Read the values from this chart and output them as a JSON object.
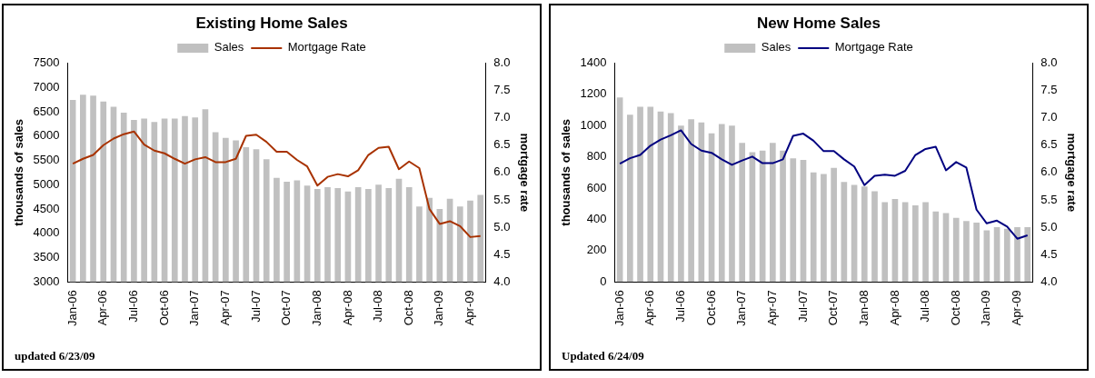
{
  "chart_data": [
    {
      "type": "bar",
      "title": "Existing Home Sales",
      "ylabel": "thousands of sales",
      "y2label": "mortgage rate",
      "categories": [
        "Jan-06",
        null,
        null,
        "Apr-06",
        null,
        null,
        "Jul-06",
        null,
        null,
        "Oct-06",
        null,
        null,
        "Jan-07",
        null,
        null,
        "Apr-07",
        null,
        null,
        "Jul-07",
        null,
        null,
        "Oct-07",
        null,
        null,
        "Jan-08",
        null,
        null,
        "Apr-08",
        null,
        null,
        "Jul-08",
        null,
        null,
        "Oct-08",
        null,
        null,
        "Jan-09",
        null,
        null,
        "Apr-09",
        null
      ],
      "series": [
        {
          "name": "Sales",
          "color": "#c0c0c0",
          "values": [
            6740,
            6850,
            6830,
            6710,
            6600,
            6480,
            6330,
            6360,
            6290,
            6360,
            6360,
            6410,
            6380,
            6550,
            6080,
            5960,
            5910,
            5770,
            5730,
            5520,
            5140,
            5060,
            5090,
            4980,
            4910,
            4950,
            4930,
            4860,
            4950,
            4910,
            5000,
            4930,
            5120,
            4950,
            4550,
            4730,
            4500,
            4710,
            4550,
            4670,
            4790
          ]
        },
        {
          "name": "Mortgage Rate",
          "type": "line",
          "axis": "y2",
          "color": "#a83200",
          "values": [
            6.16,
            6.25,
            6.32,
            6.5,
            6.62,
            6.7,
            6.75,
            6.51,
            6.4,
            6.35,
            6.25,
            6.16,
            6.24,
            6.28,
            6.19,
            6.19,
            6.25,
            6.67,
            6.69,
            6.56,
            6.38,
            6.38,
            6.23,
            6.11,
            5.76,
            5.92,
            5.97,
            5.93,
            6.04,
            6.32,
            6.45,
            6.47,
            6.06,
            6.2,
            6.08,
            5.33,
            5.06,
            5.11,
            5.02,
            4.82,
            4.84
          ]
        }
      ],
      "ylim": [
        3000,
        7500
      ],
      "yticks": [
        3000,
        3500,
        4000,
        4500,
        5000,
        5500,
        6000,
        6500,
        7000,
        7500
      ],
      "y2lim": [
        4,
        8
      ],
      "y2ticks": [
        {
          "value": 4,
          "label": "4.0"
        },
        {
          "value": 4.5,
          "label": "4.5"
        },
        {
          "value": 5,
          "label": "5.0"
        },
        {
          "value": 5.5,
          "label": "5.5"
        },
        {
          "value": 6,
          "label": "6.0"
        },
        {
          "value": 6.5,
          "label": "6.5"
        },
        {
          "value": 7,
          "label": "7.0"
        },
        {
          "value": 7.5,
          "label": "7.5"
        },
        {
          "value": 8,
          "label": "8.0"
        }
      ],
      "legend": "top",
      "marker": "none",
      "grid": false,
      "annotations": [
        "updated 6/23/09"
      ]
    },
    {
      "type": "bar",
      "title": "New Home Sales",
      "ylabel": "thousands of sales",
      "y2label": "mortgage rate",
      "categories": [
        "Jan-06",
        null,
        null,
        "Apr-06",
        null,
        null,
        "Jul-06",
        null,
        null,
        "Oct-06",
        null,
        null,
        "Jan-07",
        null,
        null,
        "Apr-07",
        null,
        null,
        "Jul-07",
        null,
        null,
        "Oct-07",
        null,
        null,
        "Jan-08",
        null,
        null,
        "Apr-08",
        null,
        null,
        "Jul-08",
        null,
        null,
        "Oct-08",
        null,
        null,
        "Jan-09",
        null,
        null,
        "Apr-09",
        null
      ],
      "series": [
        {
          "name": "Sales",
          "color": "#c0c0c0",
          "values": [
            1180,
            1070,
            1120,
            1120,
            1090,
            1080,
            1000,
            1040,
            1020,
            950,
            1010,
            1000,
            890,
            830,
            840,
            890,
            840,
            790,
            780,
            700,
            690,
            730,
            640,
            620,
            610,
            580,
            510,
            530,
            510,
            490,
            510,
            450,
            440,
            410,
            390,
            380,
            330,
            350,
            340,
            350,
            350
          ]
        },
        {
          "name": "Mortgage Rate",
          "type": "line",
          "axis": "y2",
          "color": "#000080",
          "values": [
            6.16,
            6.26,
            6.32,
            6.49,
            6.6,
            6.68,
            6.77,
            6.52,
            6.4,
            6.36,
            6.24,
            6.14,
            6.22,
            6.29,
            6.17,
            6.17,
            6.24,
            6.67,
            6.71,
            6.58,
            6.39,
            6.39,
            6.24,
            6.11,
            5.77,
            5.94,
            5.96,
            5.94,
            6.03,
            6.32,
            6.43,
            6.47,
            6.04,
            6.19,
            6.09,
            5.32,
            5.07,
            5.12,
            5.01,
            4.79,
            4.85
          ]
        }
      ],
      "ylim": [
        0,
        1400
      ],
      "yticks": [
        0,
        200,
        400,
        600,
        800,
        1000,
        1200,
        1400
      ],
      "y2lim": [
        4,
        8
      ],
      "y2ticks": [
        {
          "value": 4,
          "label": "4.0"
        },
        {
          "value": 4.5,
          "label": "4.5"
        },
        {
          "value": 5,
          "label": "5.0"
        },
        {
          "value": 5.5,
          "label": "5.5"
        },
        {
          "value": 6,
          "label": "6.0"
        },
        {
          "value": 6.5,
          "label": "6.5"
        },
        {
          "value": 7,
          "label": "7.0"
        },
        {
          "value": 7.5,
          "label": "7.5"
        },
        {
          "value": 8,
          "label": "8.0"
        }
      ],
      "legend": "top",
      "marker": "none",
      "grid": false,
      "annotations": [
        "Updated 6/24/09"
      ]
    }
  ]
}
